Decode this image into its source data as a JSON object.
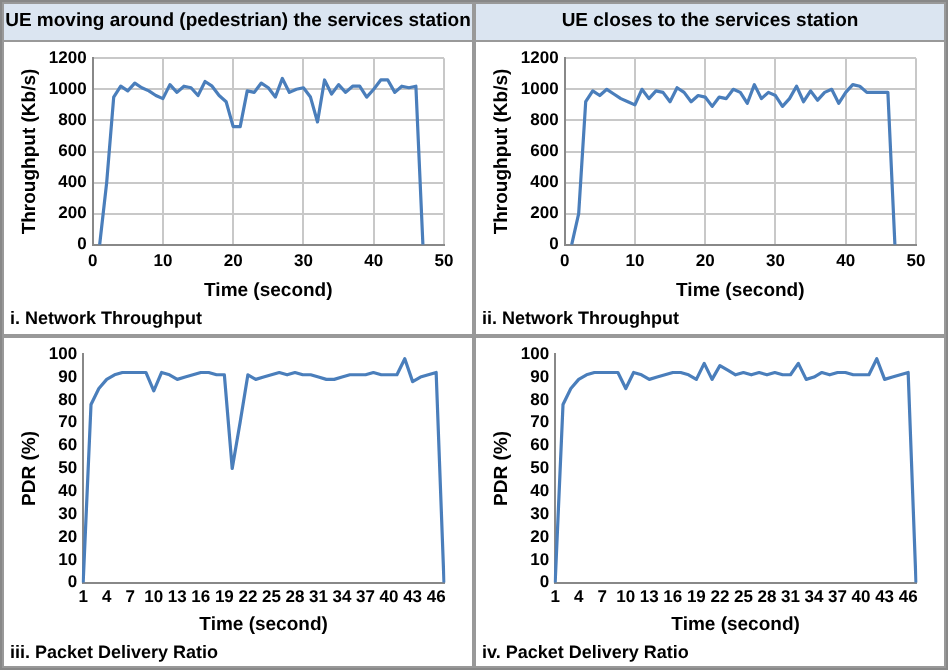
{
  "chart_data": [
    {
      "type": "line",
      "title": "UE moving around (pedestrian) the services station",
      "xlabel": "Time (second)",
      "ylabel": "Throughput (Kb/s)",
      "annotations": [
        "i. Network Throughput"
      ],
      "x": [
        1,
        2,
        3,
        4,
        5,
        6,
        7,
        8,
        9,
        10,
        11,
        12,
        13,
        14,
        15,
        16,
        17,
        18,
        19,
        20,
        21,
        22,
        23,
        24,
        25,
        26,
        27,
        28,
        29,
        30,
        31,
        32,
        33,
        34,
        35,
        36,
        37,
        38,
        39,
        40,
        41,
        42,
        43,
        44,
        45,
        46,
        47
      ],
      "series": [
        {
          "color": "#4a7ebb",
          "values": [
            0,
            400,
            950,
            1020,
            990,
            1040,
            1010,
            990,
            960,
            940,
            1030,
            980,
            1020,
            1010,
            960,
            1050,
            1020,
            960,
            920,
            760,
            760,
            990,
            980,
            1040,
            1010,
            950,
            1070,
            980,
            1000,
            1010,
            950,
            790,
            1060,
            970,
            1030,
            980,
            1020,
            1020,
            950,
            1000,
            1060,
            1060,
            980,
            1020,
            1010,
            1020,
            0
          ]
        }
      ],
      "xlim": [
        0,
        50
      ],
      "xticks": [
        0,
        10,
        20,
        30,
        40,
        50
      ],
      "ylim": [
        0,
        1200
      ],
      "yticks": [
        0,
        200,
        400,
        600,
        800,
        1000,
        1200
      ],
      "grid": true,
      "marker": "none"
    },
    {
      "type": "line",
      "title": "UE closes to the services station",
      "xlabel": "Time (second)",
      "ylabel": "Throughput (Kb/s)",
      "annotations": [
        "ii. Network Throughput"
      ],
      "x": [
        1,
        2,
        3,
        4,
        5,
        6,
        7,
        8,
        9,
        10,
        11,
        12,
        13,
        14,
        15,
        16,
        17,
        18,
        19,
        20,
        21,
        22,
        23,
        24,
        25,
        26,
        27,
        28,
        29,
        30,
        31,
        32,
        33,
        34,
        35,
        36,
        37,
        38,
        39,
        40,
        41,
        42,
        43,
        44,
        45,
        46,
        47
      ],
      "series": [
        {
          "color": "#4a7ebb",
          "values": [
            0,
            200,
            920,
            990,
            960,
            1000,
            970,
            940,
            920,
            900,
            1000,
            940,
            990,
            980,
            920,
            1010,
            980,
            920,
            960,
            950,
            890,
            950,
            940,
            1000,
            980,
            910,
            1030,
            940,
            980,
            960,
            890,
            940,
            1020,
            920,
            990,
            930,
            980,
            1000,
            910,
            980,
            1030,
            1020,
            980,
            980,
            980,
            980,
            0
          ]
        }
      ],
      "xlim": [
        0,
        50
      ],
      "xticks": [
        0,
        10,
        20,
        30,
        40,
        50
      ],
      "ylim": [
        0,
        1200
      ],
      "yticks": [
        0,
        200,
        400,
        600,
        800,
        1000,
        1200
      ],
      "grid": true,
      "marker": "none"
    },
    {
      "type": "line",
      "xlabel": "Time (second)",
      "ylabel": "PDR (%)",
      "annotations": [
        "iii. Packet Delivery Ratio"
      ],
      "categories": [
        "1",
        null,
        null,
        "4",
        null,
        null,
        "7",
        null,
        null,
        "10",
        null,
        null,
        "13",
        null,
        null,
        "16",
        null,
        null,
        "19",
        null,
        null,
        "22",
        null,
        null,
        "25",
        null,
        null,
        "28",
        null,
        null,
        "31",
        null,
        null,
        "34",
        null,
        null,
        "37",
        null,
        null,
        "40",
        null,
        null,
        "43",
        null,
        null,
        "46",
        null
      ],
      "series": [
        {
          "color": "#4a7ebb",
          "values": [
            0,
            78,
            85,
            89,
            91,
            92,
            92,
            92,
            92,
            84,
            92,
            91,
            89,
            90,
            91,
            92,
            92,
            91,
            91,
            50,
            70,
            91,
            89,
            90,
            91,
            92,
            91,
            92,
            91,
            91,
            90,
            89,
            89,
            90,
            91,
            91,
            91,
            92,
            91,
            91,
            91,
            98,
            88,
            90,
            91,
            92,
            0
          ]
        }
      ],
      "ylim": [
        0,
        100
      ],
      "yticks": [
        0,
        10,
        20,
        30,
        40,
        50,
        60,
        70,
        80,
        90,
        100
      ],
      "marker": "none"
    },
    {
      "type": "line",
      "xlabel": "Time (second)",
      "ylabel": "PDR (%)",
      "annotations": [
        "iv. Packet Delivery Ratio"
      ],
      "categories": [
        "1",
        null,
        null,
        "4",
        null,
        null,
        "7",
        null,
        null,
        "10",
        null,
        null,
        "13",
        null,
        null,
        "16",
        null,
        null,
        "19",
        null,
        null,
        "22",
        null,
        null,
        "25",
        null,
        null,
        "28",
        null,
        null,
        "31",
        null,
        null,
        "34",
        null,
        null,
        "37",
        null,
        null,
        "40",
        null,
        null,
        "43",
        null,
        null,
        "46",
        null
      ],
      "series": [
        {
          "color": "#4a7ebb",
          "values": [
            0,
            78,
            85,
            89,
            91,
            92,
            92,
            92,
            92,
            85,
            92,
            91,
            89,
            90,
            91,
            92,
            92,
            91,
            89,
            96,
            89,
            95,
            93,
            91,
            92,
            91,
            92,
            91,
            92,
            91,
            91,
            96,
            89,
            90,
            92,
            91,
            92,
            92,
            91,
            91,
            91,
            98,
            89,
            90,
            91,
            92,
            0
          ]
        }
      ],
      "ylim": [
        0,
        100
      ],
      "yticks": [
        0,
        10,
        20,
        30,
        40,
        50,
        60,
        70,
        80,
        90,
        100
      ],
      "marker": "none"
    }
  ]
}
